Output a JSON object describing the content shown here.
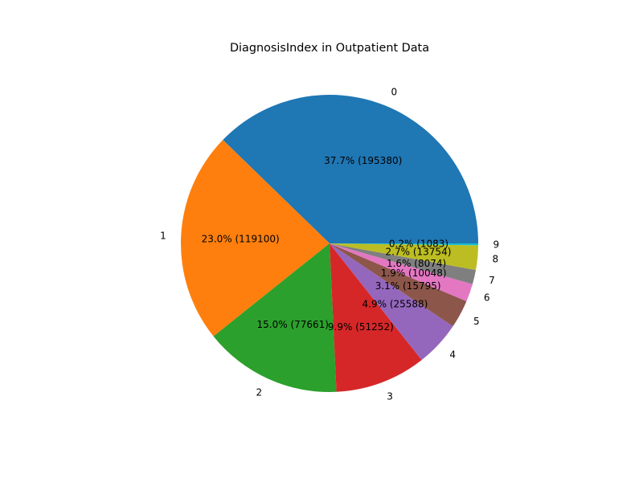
{
  "chart_data": {
    "type": "pie",
    "title": "DiagnosisIndex in Outpatient Data",
    "categories": [
      "0",
      "1",
      "2",
      "3",
      "4",
      "5",
      "6",
      "7",
      "8",
      "9"
    ],
    "values": [
      195380,
      119100,
      77661,
      51252,
      25588,
      15795,
      10048,
      8074,
      13754,
      1083
    ],
    "value_labels": [
      "37.7% (195380)",
      "23.0% (119100)",
      "15.0% (77661)",
      "9.9% (51252)",
      "4.9% (25588)",
      "3.1% (15795)",
      "1.9% (10048)",
      "1.6% (8074)",
      "2.7% (13754)",
      "0.2% (1083)"
    ],
    "colors": [
      "#1f77b4",
      "#ff7f0e",
      "#2ca02c",
      "#d62728",
      "#9467bd",
      "#8c564b",
      "#e377c2",
      "#7f7f7f",
      "#bcbd22",
      "#17becf"
    ],
    "start_angle_deg": 0,
    "direction": "counterclockwise",
    "legend": "none"
  }
}
